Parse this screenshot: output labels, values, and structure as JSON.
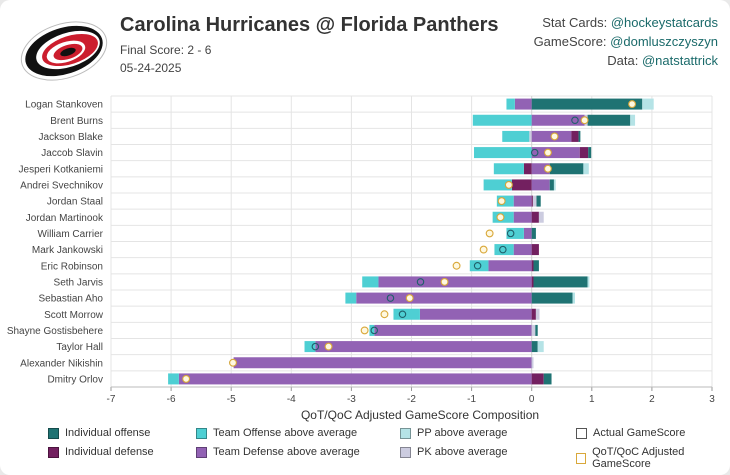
{
  "header": {
    "title": "Carolina Hurricanes @ Florida Panthers",
    "final_score": "Final Score: 2 - 6",
    "date": "05-24-2025",
    "logo": "carolina-hurricanes-logo"
  },
  "credits": [
    {
      "label": "Stat Cards: ",
      "handle": "@hockeystatcards"
    },
    {
      "label": "GameScore: ",
      "handle": "@domluszczyszyn"
    },
    {
      "label": "Data: ",
      "handle": "@natstattrick"
    }
  ],
  "colors": {
    "individual_offense": "#1f7373",
    "individual_defense": "#732060",
    "team_offense": "#4ecfd3",
    "team_defense": "#9262b4",
    "pp": "#b5e3e6",
    "pk": "#cccce0",
    "actual_marker": "#4a4a7a",
    "adjusted_marker": "#d9a83a"
  },
  "legend": [
    {
      "key": "individual_offense",
      "label": "Individual offense",
      "type": "fill"
    },
    {
      "key": "team_offense",
      "label": "Team Offense above average",
      "type": "fill"
    },
    {
      "key": "pp",
      "label": "PP above average",
      "type": "fill"
    },
    {
      "key": "actual",
      "label": "Actual GameScore",
      "type": "outline"
    },
    {
      "key": "individual_defense",
      "label": "Individual defense",
      "type": "fill"
    },
    {
      "key": "team_defense",
      "label": "Team Defense above average",
      "type": "fill"
    },
    {
      "key": "pk",
      "label": "PK above average",
      "type": "fill"
    },
    {
      "key": "adjusted",
      "label": "QoT/QoC Adjusted GameScore",
      "type": "outline-gold"
    }
  ],
  "chart_data": {
    "type": "bar",
    "orientation": "horizontal-stacked-diverging",
    "title": "",
    "xlabel": "QoT/QoC Adjusted GameScore Composition",
    "ylabel": "",
    "xlim": [
      -7,
      3
    ],
    "xticks": [
      -7,
      -6,
      -5,
      -4,
      -3,
      -2,
      -1,
      0,
      1,
      2,
      3
    ],
    "grid": true,
    "legend_position": "bottom",
    "players": [
      {
        "name": "Logan Stankoven",
        "team_offense": -0.14,
        "team_defense": -0.28,
        "individual_offense": 1.84,
        "individual_defense": 0,
        "pp": 0.19,
        "pk": 0,
        "actual": 1.67,
        "adjusted": 1.67
      },
      {
        "name": "Brent Burns",
        "team_offense": -0.98,
        "team_defense": 0.88,
        "individual_offense": 0.71,
        "individual_defense": 0,
        "pp": 0.08,
        "pk": 0.05,
        "actual": 0.72,
        "adjusted": 0.88
      },
      {
        "name": "Jackson Blake",
        "team_offense": -0.45,
        "team_defense": 0.66,
        "individual_offense": 0.03,
        "individual_defense": 0.12,
        "pp": 0,
        "pk": -0.04,
        "actual": 0.38,
        "adjusted": 0.38
      },
      {
        "name": "Jaccob Slavin",
        "team_offense": -0.96,
        "team_defense": 0.8,
        "individual_offense": 0.05,
        "individual_defense": 0.14,
        "pp": 0,
        "pk": 0,
        "actual": 0.05,
        "adjusted": 0.27
      },
      {
        "name": "Jesperi Kotkaniemi",
        "team_offense": -0.5,
        "team_defense": 0.3,
        "individual_offense": 0.56,
        "individual_defense": -0.13,
        "pp": 0.09,
        "pk": 0,
        "actual": 0.27,
        "adjusted": 0.27
      },
      {
        "name": "Andrei Svechnikov",
        "team_offense": -0.47,
        "team_defense": 0.3,
        "individual_offense": 0.07,
        "individual_defense": -0.33,
        "pp": 0.03,
        "pk": 0,
        "actual": -0.38,
        "adjusted": -0.38
      },
      {
        "name": "Jordan Staal",
        "team_offense": -0.28,
        "team_defense": -0.3,
        "individual_offense": 0.07,
        "individual_defense": 0.02,
        "pp": 0,
        "pk": 0.06,
        "actual": -0.5,
        "adjusted": -0.5
      },
      {
        "name": "Jordan Martinook",
        "team_offense": -0.35,
        "team_defense": -0.3,
        "individual_offense": 0,
        "individual_defense": 0.12,
        "pp": 0,
        "pk": 0.08,
        "actual": -0.52,
        "adjusted": -0.52
      },
      {
        "name": "William Carrier",
        "team_offense": -0.29,
        "team_defense": -0.13,
        "individual_offense": 0.07,
        "individual_defense": 0,
        "pp": 0,
        "pk": 0,
        "actual": -0.35,
        "adjusted": -0.7
      },
      {
        "name": "Mark Jankowski",
        "team_offense": -0.32,
        "team_defense": -0.3,
        "individual_offense": 0,
        "individual_defense": 0.12,
        "pp": 0,
        "pk": 0,
        "actual": -0.48,
        "adjusted": -0.8
      },
      {
        "name": "Eric Robinson",
        "team_offense": -0.31,
        "team_defense": -0.72,
        "individual_offense": 0.09,
        "individual_defense": 0.03,
        "pp": 0,
        "pk": 0,
        "actual": -0.9,
        "adjusted": -1.25
      },
      {
        "name": "Seth Jarvis",
        "team_offense": -0.27,
        "team_defense": -2.55,
        "individual_offense": 0.9,
        "individual_defense": 0.03,
        "pp": 0.03,
        "pk": 0,
        "actual": -1.85,
        "adjusted": -1.45
      },
      {
        "name": "Sebastian Aho",
        "team_offense": -0.18,
        "team_defense": -2.92,
        "individual_offense": 0.68,
        "individual_defense": 0,
        "pp": 0.04,
        "pk": 0,
        "actual": -2.35,
        "adjusted": -2.03
      },
      {
        "name": "Scott Morrow",
        "team_offense": -0.44,
        "team_defense": -1.86,
        "individual_offense": 0,
        "individual_defense": 0.07,
        "pp": 0,
        "pk": 0.06,
        "actual": -2.15,
        "adjusted": -2.45
      },
      {
        "name": "Shayne Gostisbehere",
        "team_offense": -0.08,
        "team_defense": -2.62,
        "individual_offense": 0.04,
        "individual_defense": 0,
        "pp": 0,
        "pk": 0.06,
        "actual": -2.62,
        "adjusted": -2.78
      },
      {
        "name": "Taylor Hall",
        "team_offense": -0.18,
        "team_defense": -3.6,
        "individual_offense": 0.1,
        "individual_defense": 0,
        "pp": 0.1,
        "pk": 0,
        "actual": -3.6,
        "adjusted": -3.38
      },
      {
        "name": "Alexander Nikishin",
        "team_offense": 0,
        "team_defense": -4.96,
        "individual_offense": 0,
        "individual_defense": 0,
        "pp": 0,
        "pk": 0.03,
        "actual": -4.97,
        "adjusted": -4.97
      },
      {
        "name": "Dmitry Orlov",
        "team_offense": -0.18,
        "team_defense": -5.87,
        "individual_offense": 0.13,
        "individual_defense": 0.2,
        "pp": 0,
        "pk": 0,
        "actual": -5.75,
        "adjusted": -5.75
      }
    ]
  }
}
